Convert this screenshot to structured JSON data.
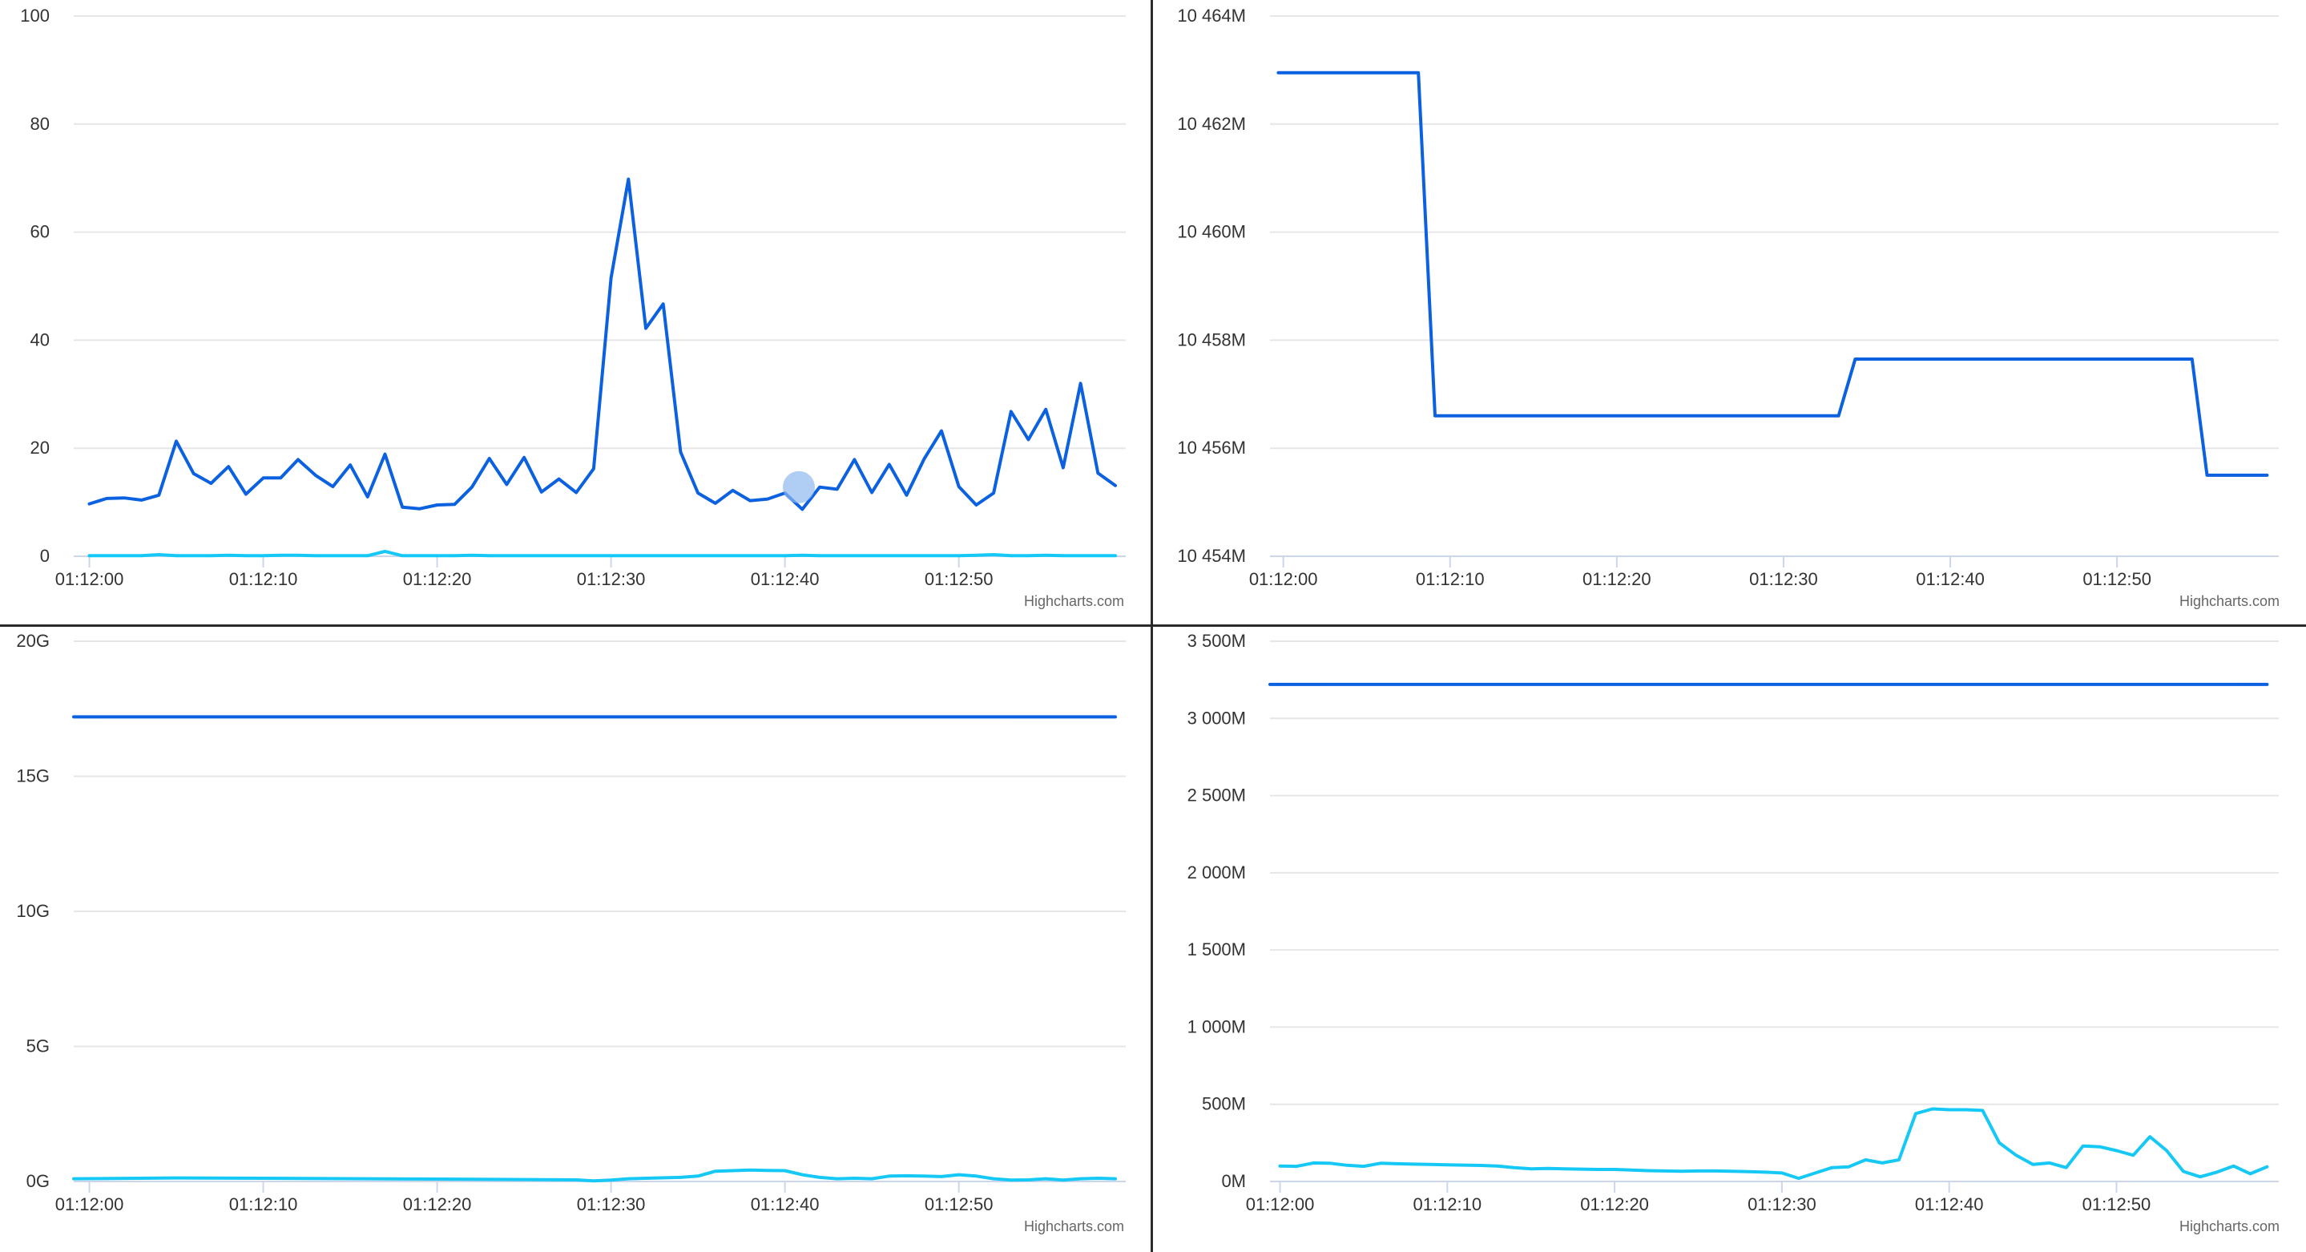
{
  "colors": {
    "series_dark": "#0b61e0",
    "series_light": "#16c8f5",
    "hover_marker": "#8fb8f0"
  },
  "credit_text": "Highcharts.com",
  "chart_data": [
    {
      "type": "line",
      "x_ticks": [
        "01:12:00",
        "01:12:10",
        "01:12:20",
        "01:12:30",
        "01:12:40",
        "01:12:50"
      ],
      "xlim": [
        -0.9,
        59.6
      ],
      "ylim": [
        0,
        100
      ],
      "y_ticks": [
        0,
        20,
        40,
        60,
        80,
        100
      ],
      "y_tick_labels": [
        "0",
        "20",
        "40",
        "60",
        "80",
        "100"
      ],
      "grid": true,
      "hover_point": {
        "x": 40.8,
        "y": 12.8
      },
      "series": [
        {
          "color_key": "series_dark",
          "x": [
            0,
            1,
            2,
            3,
            4,
            5,
            6,
            7,
            8,
            9,
            10,
            11,
            12,
            13,
            14,
            15,
            16,
            17,
            18,
            19,
            20,
            21,
            22,
            23,
            24,
            25,
            26,
            27,
            28,
            29,
            30,
            31,
            32,
            33,
            34,
            35,
            36,
            37,
            38,
            39,
            40,
            41,
            42,
            43,
            44,
            45,
            46,
            47,
            48,
            49,
            50,
            51,
            52,
            53,
            54,
            55,
            56,
            57,
            58,
            59
          ],
          "y": [
            9.7,
            10.7,
            10.8,
            10.4,
            11.3,
            21.3,
            15.3,
            13.5,
            16.6,
            11.5,
            14.5,
            14.5,
            17.9,
            15.0,
            12.9,
            16.9,
            11.0,
            18.9,
            9.1,
            8.8,
            9.5,
            9.6,
            12.8,
            18.1,
            13.3,
            18.3,
            11.9,
            14.3,
            11.8,
            16.2,
            51.5,
            69.8,
            42.2,
            46.7,
            19.3,
            11.7,
            9.8,
            12.2,
            10.3,
            10.6,
            11.7,
            8.7,
            12.8,
            12.4,
            17.9,
            11.8,
            17.0,
            11.3,
            18.0,
            23.2,
            12.9,
            9.5,
            11.7,
            26.8,
            21.6,
            27.2,
            16.4,
            32.0,
            15.4,
            13.1
          ]
        },
        {
          "color_key": "series_light",
          "x": [
            0,
            1,
            2,
            3,
            4,
            5,
            6,
            7,
            8,
            9,
            10,
            11,
            12,
            13,
            14,
            15,
            16,
            17,
            18,
            19,
            20,
            21,
            22,
            23,
            24,
            25,
            26,
            27,
            28,
            29,
            30,
            31,
            32,
            33,
            34,
            35,
            36,
            37,
            38,
            39,
            40,
            41,
            42,
            43,
            44,
            45,
            46,
            47,
            48,
            49,
            50,
            51,
            52,
            53,
            54,
            55,
            56,
            57,
            58,
            59
          ],
          "y": [
            0.1,
            0.1,
            0.1,
            0.1,
            0.3,
            0.1,
            0.1,
            0.1,
            0.2,
            0.1,
            0.1,
            0.2,
            0.2,
            0.1,
            0.1,
            0.1,
            0.1,
            0.9,
            0.1,
            0.1,
            0.1,
            0.1,
            0.2,
            0.1,
            0.1,
            0.1,
            0.1,
            0.1,
            0.1,
            0.1,
            0.1,
            0.1,
            0.1,
            0.1,
            0.1,
            0.1,
            0.1,
            0.1,
            0.1,
            0.1,
            0.1,
            0.2,
            0.1,
            0.1,
            0.1,
            0.1,
            0.1,
            0.1,
            0.1,
            0.1,
            0.1,
            0.2,
            0.3,
            0.1,
            0.1,
            0.2,
            0.1,
            0.1,
            0.1,
            0.1
          ]
        }
      ]
    },
    {
      "type": "line",
      "x_ticks": [
        "01:12:00",
        "01:12:10",
        "01:12:20",
        "01:12:30",
        "01:12:40",
        "01:12:50"
      ],
      "xlim": [
        -0.8,
        59.7
      ],
      "ylim": [
        10454,
        10464
      ],
      "y_ticks": [
        10454,
        10456,
        10458,
        10460,
        10462,
        10464
      ],
      "y_tick_labels": [
        "10 454M",
        "10 456M",
        "10 458M",
        "10 460M",
        "10 462M",
        "10 464M"
      ],
      "grid": true,
      "series": [
        {
          "color_key": "series_dark",
          "x": [
            -0.3,
            8.1,
            9.1,
            33.3,
            34.3,
            54.5,
            55.4,
            59.0
          ],
          "y": [
            10462.95,
            10462.95,
            10456.6,
            10456.6,
            10457.65,
            10457.65,
            10455.5,
            10455.5
          ]
        }
      ]
    },
    {
      "type": "line",
      "x_ticks": [
        "01:12:00",
        "01:12:10",
        "01:12:20",
        "01:12:30",
        "01:12:40",
        "01:12:50"
      ],
      "xlim": [
        -0.9,
        59.6
      ],
      "ylim": [
        0,
        20
      ],
      "y_ticks": [
        0,
        5,
        10,
        15,
        20
      ],
      "y_tick_labels": [
        "0G",
        "5G",
        "10G",
        "15G",
        "20G"
      ],
      "grid": true,
      "series": [
        {
          "color_key": "series_dark",
          "x": [
            -0.9,
            59.0
          ],
          "y": [
            17.2,
            17.2
          ]
        },
        {
          "color_key": "series_light",
          "x": [
            -0.9,
            5,
            10,
            20,
            28,
            29,
            30,
            31,
            32,
            34,
            35,
            36,
            37,
            38,
            39,
            40,
            41,
            42,
            43,
            44,
            45,
            46,
            47,
            48,
            49,
            50,
            51,
            52,
            53,
            54,
            55,
            56,
            57,
            58,
            59
          ],
          "y": [
            0.1,
            0.13,
            0.12,
            0.09,
            0.06,
            0.02,
            0.05,
            0.1,
            0.12,
            0.15,
            0.2,
            0.38,
            0.4,
            0.42,
            0.41,
            0.4,
            0.25,
            0.15,
            0.1,
            0.12,
            0.1,
            0.2,
            0.21,
            0.2,
            0.18,
            0.25,
            0.2,
            0.1,
            0.05,
            0.06,
            0.1,
            0.05,
            0.1,
            0.12,
            0.1
          ]
        }
      ]
    },
    {
      "type": "line",
      "x_ticks": [
        "01:12:00",
        "01:12:10",
        "01:12:20",
        "01:12:30",
        "01:12:40",
        "01:12:50"
      ],
      "xlim": [
        -0.6,
        59.7
      ],
      "ylim": [
        0,
        3500
      ],
      "y_ticks": [
        0,
        500,
        1000,
        1500,
        2000,
        2500,
        3000,
        3500
      ],
      "y_tick_labels": [
        "0M",
        "500M",
        "1 000M",
        "1 500M",
        "2 000M",
        "2 500M",
        "3 000M",
        "3 500M"
      ],
      "grid": true,
      "series": [
        {
          "color_key": "series_dark",
          "x": [
            -0.6,
            59.0
          ],
          "y": [
            3220,
            3220
          ]
        },
        {
          "color_key": "series_light",
          "x": [
            0,
            1,
            2,
            3,
            4,
            5,
            6,
            7,
            8,
            9,
            10,
            11,
            12,
            13,
            14,
            15,
            16,
            17,
            18,
            19,
            20,
            21,
            22,
            23,
            24,
            25,
            26,
            27,
            28,
            29,
            30,
            31,
            32,
            33,
            34,
            35,
            36,
            37,
            38,
            39,
            40,
            41,
            42,
            43,
            44,
            45,
            46,
            47,
            48,
            49,
            50,
            51,
            52,
            53,
            54,
            55,
            56,
            57,
            58,
            59
          ],
          "y": [
            100,
            98,
            120,
            118,
            105,
            98,
            118,
            115,
            112,
            110,
            108,
            106,
            104,
            100,
            90,
            82,
            84,
            82,
            80,
            78,
            78,
            74,
            70,
            68,
            66,
            68,
            68,
            66,
            64,
            60,
            55,
            20,
            55,
            90,
            95,
            140,
            120,
            140,
            440,
            470,
            465,
            465,
            460,
            250,
            170,
            110,
            120,
            90,
            230,
            225,
            200,
            170,
            290,
            200,
            65,
            30,
            60,
            100,
            50,
            95
          ]
        }
      ]
    }
  ]
}
